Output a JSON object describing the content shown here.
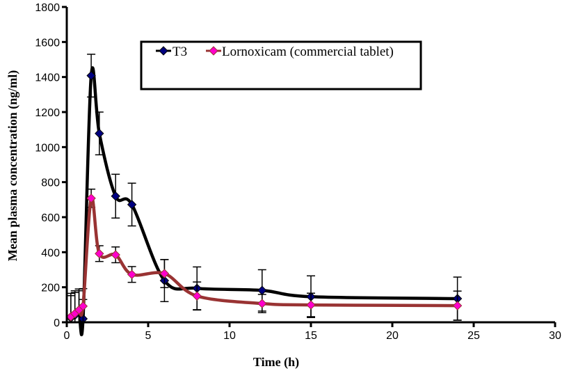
{
  "chart_data": {
    "type": "line",
    "title": "",
    "xlabel": "Time (h)",
    "ylabel": "Mean plasma concentration (ng/ml)",
    "xlim": [
      0,
      30
    ],
    "ylim": [
      0,
      1800
    ],
    "xticks": [
      0,
      5,
      10,
      15,
      20,
      25,
      30
    ],
    "yticks": [
      0,
      200,
      400,
      600,
      800,
      1000,
      1200,
      1400,
      1600,
      1800
    ],
    "grid": false,
    "legend_position": "top-center",
    "x": [
      0.25,
      0.5,
      0.75,
      1,
      1.5,
      2,
      3,
      4,
      6,
      8,
      12,
      15,
      24
    ],
    "series": [
      {
        "name": "T3",
        "line_color": "#000000",
        "marker_color": "#000080",
        "marker": "diamond",
        "values": [
          25,
          40,
          60,
          20,
          1408,
          1078,
          720,
          672,
          238,
          194,
          182,
          146,
          135
        ],
        "error": [
          140,
          140,
          130,
          110,
          122,
          122,
          125,
          122,
          120,
          122,
          118,
          119,
          123
        ]
      },
      {
        "name": "Lornoxicam (commercial tablet)",
        "line_color": "#993333",
        "marker_color": "#FF00CC",
        "marker": "diamond",
        "values": [
          32,
          50,
          70,
          92,
          708,
          392,
          385,
          273,
          278,
          150,
          107,
          99,
          95
        ],
        "error": [
          120,
          120,
          110,
          100,
          52,
          45,
          45,
          45,
          80,
          80,
          52,
          67,
          83
        ]
      }
    ]
  }
}
